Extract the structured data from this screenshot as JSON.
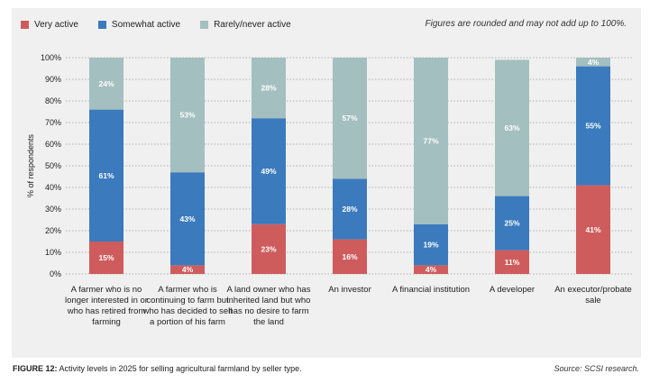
{
  "legend": {
    "items": [
      {
        "label": "Very active",
        "color": "#cf5c5c"
      },
      {
        "label": "Somewhat active",
        "color": "#3b7abd"
      },
      {
        "label": "Rarely/never active",
        "color": "#a4bfbf"
      }
    ]
  },
  "note": "Figures are rounded and may not add up to 100%.",
  "caption": {
    "figure_label": "FIGURE 12:",
    "text": "Activity levels in 2025 for selling agricultural farmland by seller type."
  },
  "source": "Source: SCSI research.",
  "chart_data": {
    "type": "bar",
    "stacked": true,
    "ylabel": "% of respondents",
    "ylim": [
      0,
      100
    ],
    "yticks": [
      "0%",
      "10%",
      "20%",
      "30%",
      "40%",
      "50%",
      "60%",
      "70%",
      "80%",
      "90%",
      "100%"
    ],
    "grid": true,
    "legend_position": "top-left",
    "categories": [
      "A farmer who is no longer interested in or who has retired from farming",
      "A farmer who is continuing to farm but who has decided to sell a portion of his farm",
      "A land owner who has inherited land but who has no desire to farm the land",
      "An investor",
      "A financial institution",
      "A developer",
      "An executor/probate sale"
    ],
    "series": [
      {
        "name": "Very active",
        "color": "#cf5c5c",
        "values": [
          15,
          4,
          23,
          16,
          4,
          11,
          41
        ]
      },
      {
        "name": "Somewhat active",
        "color": "#3b7abd",
        "values": [
          61,
          43,
          49,
          28,
          19,
          25,
          55
        ]
      },
      {
        "name": "Rarely/never active",
        "color": "#a4bfbf",
        "values": [
          24,
          53,
          28,
          57,
          77,
          63,
          4
        ]
      }
    ]
  }
}
